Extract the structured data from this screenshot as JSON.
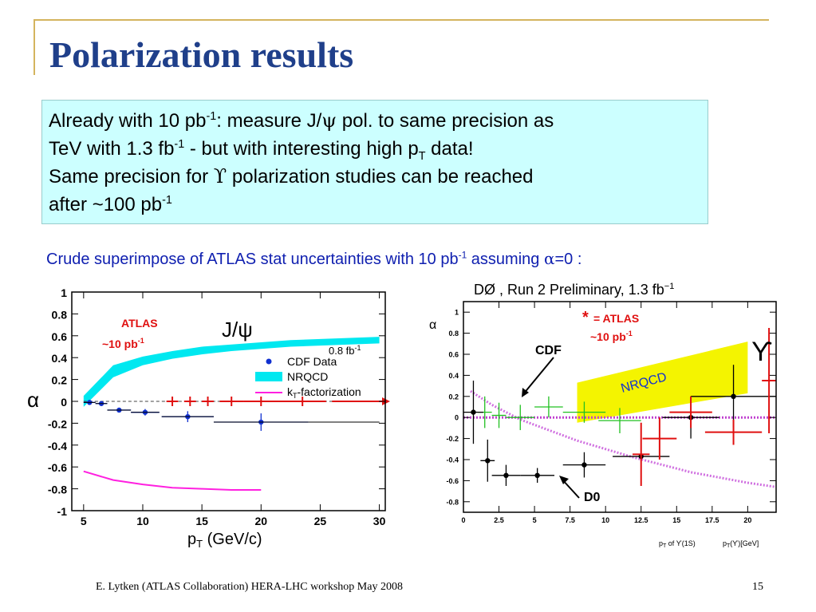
{
  "title": "Polarization results",
  "summary": {
    "line1_a": "Already with 10 pb",
    "line1_sup": "-1",
    "line1_b": ": measure J/",
    "psi": "ψ",
    "line1_c": " pol. to same precision as",
    "line2_a": "TeV with 1.3 fb",
    "line2_sup": "-1",
    "line2_b": " -  but with interesting high p",
    "line2_sub": "T",
    "line2_c": " data!",
    "line3_a": "Same precision for ",
    "upsilon": "ϒ",
    "line3_b": " polarization studies can be reached",
    "line4_a": "after ~100 pb",
    "line4_sup": "-1"
  },
  "crude_line": {
    "text_a": "Crude superimpose of ATLAS stat uncertainties with 10 pb",
    "sup": "-1",
    "text_b": " assuming ",
    "alpha": "α",
    "text_c": "=0 :"
  },
  "footer": {
    "credit": "E. Lytken  (ATLAS Collaboration) HERA-LHC workshop May 2008",
    "page": "15"
  },
  "colors": {
    "title": "#1f3f8a",
    "box_bg": "#ccffff",
    "atlas_red": "#e01010",
    "cdf_blue": "#1030d0",
    "nrqcd_cyan": "#00e8f0",
    "kt_magenta": "#ff20e0",
    "nrqcd_yellow": "#f4f400",
    "d0_green": "#20c020"
  },
  "chart_data": [
    {
      "type": "scatter",
      "xlabel": "p",
      "xlabel_sub": "T",
      "xlabel_unit": " (GeV/c)",
      "ylabel": "α",
      "xlim": [
        4,
        30.5
      ],
      "ylim": [
        -1,
        1
      ],
      "x_ticks": [
        "5",
        "10",
        "15",
        "20",
        "25",
        "30"
      ],
      "y_ticks": [
        "1",
        "0.8",
        "0.6",
        "0.4",
        "0.2",
        "0",
        "-0.2",
        "-0.4",
        "-0.6",
        "-0.8",
        "-1"
      ],
      "x_tick_values": [
        5,
        10,
        15,
        20,
        25,
        30
      ],
      "y_tick_values": [
        1,
        0.8,
        0.6,
        0.4,
        0.2,
        0,
        -0.2,
        -0.4,
        -0.6,
        -0.8,
        -1
      ],
      "particle_label": "J/ψ",
      "legend": [
        "CDF Data",
        "NRQCD",
        "k",
        "T",
        "-factorization"
      ],
      "legend_position": "right",
      "atlas_label": "ATLAS",
      "atlas_lumi": "~10 pb",
      "atlas_lumi_sup": "-1",
      "lumi_label": "0.8 fb",
      "lumi_sup": "-1",
      "cdf_data": [
        {
          "x": 5.5,
          "y": -0.01,
          "xerr": 0.5,
          "yerr": 0.02
        },
        {
          "x": 6.5,
          "y": -0.02,
          "xerr": 0.5,
          "yerr": 0.02
        },
        {
          "x": 8.0,
          "y": -0.08,
          "xerr": 1.0,
          "yerr": 0.02
        },
        {
          "x": 10.2,
          "y": -0.1,
          "xerr": 1.2,
          "yerr": 0.03
        },
        {
          "x": 13.8,
          "y": -0.14,
          "xerr": 2.2,
          "yerr": 0.05
        },
        {
          "x": 20.0,
          "y": -0.19,
          "xerr": 4.0,
          "yerr": 0.08
        }
      ],
      "nrqcd_band_x": [
        5,
        7.5,
        10,
        12.5,
        15,
        17.5,
        20,
        22.5,
        25,
        27.5,
        30
      ],
      "nrqcd_band_lower": [
        -0.05,
        0.22,
        0.33,
        0.39,
        0.43,
        0.46,
        0.48,
        0.5,
        0.51,
        0.52,
        0.53
      ],
      "nrqcd_band_upper": [
        0.05,
        0.33,
        0.41,
        0.46,
        0.5,
        0.52,
        0.54,
        0.56,
        0.57,
        0.58,
        0.59
      ],
      "kt_x": [
        5,
        7.5,
        10,
        12.5,
        15,
        17.5,
        20
      ],
      "kt_y": [
        -0.64,
        -0.72,
        -0.76,
        -0.79,
        -0.8,
        -0.81,
        -0.81
      ],
      "atlas_points": [
        {
          "x": 12.5,
          "y": 0,
          "xerr": 0.5
        },
        {
          "x": 14.0,
          "y": 0,
          "xerr": 0.5
        },
        {
          "x": 15.5,
          "y": 0,
          "xerr": 0.5
        },
        {
          "x": 17.5,
          "y": 0,
          "xerr": 1.0
        },
        {
          "x": 20.0,
          "y": 0,
          "xerr": 1.5
        },
        {
          "x": 23.5,
          "y": 0,
          "xerr": 2.0
        }
      ]
    },
    {
      "type": "scatter",
      "title": "DØ , Run 2 Preliminary, 1.3 fb",
      "title_sup": "−1",
      "ylabel": "α",
      "xlabel_a": "p",
      "xlabel_a_sub": "T",
      "xlabel_a_rest": " of ϒ(1S)",
      "xlabel_b": "p",
      "xlabel_b_sub": "T",
      "xlabel_b_rest": "(ϒ)[GeV]",
      "xlim": [
        0,
        22
      ],
      "ylim": [
        -0.9,
        1.1
      ],
      "x_ticks": [
        "0",
        "2.5",
        "5",
        "7.5",
        "10",
        "12.5",
        "15",
        "17.5",
        "20"
      ],
      "y_ticks": [
        "1",
        "0.8",
        "0.6",
        "0.4",
        "0.2",
        "0",
        "-0.2",
        "-0.4",
        "-0.6",
        "-0.8"
      ],
      "x_tick_values": [
        0,
        2.5,
        5,
        7.5,
        10,
        12.5,
        15,
        17.5,
        20
      ],
      "y_tick_values": [
        1,
        0.8,
        0.6,
        0.4,
        0.2,
        0,
        -0.2,
        -0.4,
        -0.6,
        -0.8
      ],
      "particle_label": "ϒ",
      "atlas_star": "*",
      "atlas_label": " = ATLAS",
      "atlas_lumi": "~10 pb",
      "atlas_lumi_sup": "-1",
      "cdf_label": "CDF",
      "d0_label": "D0",
      "nrqcd_label": "NRQCD",
      "nrqcd_band": {
        "x": [
          8,
          20
        ],
        "lower": [
          -0.05,
          0.23
        ],
        "upper": [
          0.33,
          0.72
        ]
      },
      "d0_points": [
        {
          "x": 0.7,
          "y": 0.05,
          "xerr": 0.7,
          "yerr": 0.3
        },
        {
          "x": 1.7,
          "y": -0.41,
          "xerr": 0.5,
          "yerr": 0.2
        },
        {
          "x": 3.0,
          "y": -0.55,
          "xerr": 1.0,
          "yerr": 0.1
        },
        {
          "x": 5.2,
          "y": -0.55,
          "xerr": 1.2,
          "yerr": 0.07
        },
        {
          "x": 8.5,
          "y": -0.45,
          "xerr": 1.5,
          "yerr": 0.12
        },
        {
          "x": 12.5,
          "y": -0.37,
          "xerr": 2.0,
          "yerr": 0.18
        },
        {
          "x": 16.0,
          "y": 0.0,
          "xerr": 2.0,
          "yerr": 0.2
        },
        {
          "x": 19.0,
          "y": 0.2,
          "xerr": 3.0,
          "yerr": 0.3
        }
      ],
      "cdf_points": [
        {
          "x": 1.5,
          "y": 0.05,
          "xerr": 0.5,
          "yerr": 0.15
        },
        {
          "x": 2.5,
          "y": 0.02,
          "xerr": 0.5,
          "yerr": 0.12
        },
        {
          "x": 4.0,
          "y": 0.0,
          "xerr": 1.0,
          "yerr": 0.12
        },
        {
          "x": 6.0,
          "y": 0.1,
          "xerr": 1.0,
          "yerr": 0.1
        },
        {
          "x": 8.5,
          "y": 0.05,
          "xerr": 1.5,
          "yerr": 0.1
        },
        {
          "x": 11.0,
          "y": -0.03,
          "xerr": 1.5,
          "yerr": 0.12
        }
      ],
      "atlas_points": [
        {
          "x": 12.5,
          "y": -0.35,
          "xerr": 0.6,
          "yerr": 0.3
        },
        {
          "x": 13.8,
          "y": -0.2,
          "xerr": 1.2,
          "yerr": 0.2
        },
        {
          "x": 16.0,
          "y": 0.05,
          "xerr": 1.5,
          "yerr": 0.15
        },
        {
          "x": 19.0,
          "y": -0.14,
          "xerr": 2.0,
          "yerr": 0.12
        },
        {
          "x": 21.5,
          "y": 0.35,
          "xerr": 0.5,
          "yerr": 0.5
        }
      ],
      "curve_d0_x": [
        0.5,
        2,
        4,
        6,
        8,
        10,
        12,
        14,
        16,
        18,
        20,
        22
      ],
      "curve_d0_y": [
        0.25,
        0.12,
        -0.02,
        -0.12,
        -0.22,
        -0.3,
        -0.38,
        -0.45,
        -0.52,
        -0.57,
        -0.62,
        -0.66
      ],
      "curve_flat_y": 0.0
    }
  ]
}
